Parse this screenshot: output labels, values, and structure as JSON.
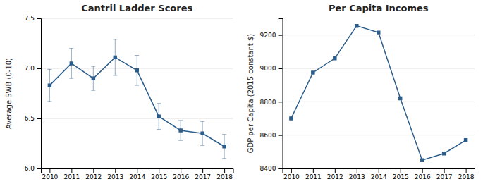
{
  "chart_data": [
    {
      "type": "line",
      "title": "Cantril Ladder Scores",
      "ylabel": "Average SWB (0-10)",
      "x": [
        2010,
        2011,
        2012,
        2013,
        2014,
        2015,
        2016,
        2017,
        2018
      ],
      "values": [
        6.83,
        7.05,
        6.9,
        7.11,
        6.98,
        6.52,
        6.38,
        6.35,
        6.22
      ],
      "error_low": [
        0.16,
        0.15,
        0.12,
        0.18,
        0.15,
        0.13,
        0.1,
        0.12,
        0.12
      ],
      "error_high": [
        0.16,
        0.15,
        0.12,
        0.18,
        0.15,
        0.13,
        0.1,
        0.12,
        0.12
      ],
      "color": "#2b5c8a",
      "marker": "square",
      "xlim": [
        2009.6,
        2018.4
      ],
      "xticks": [
        2010,
        2011,
        2012,
        2013,
        2014,
        2015,
        2016,
        2017,
        2018
      ],
      "ylim": [
        6.0,
        7.5
      ],
      "yticks": [
        {
          "value": 6.0,
          "label": "6.0"
        },
        6.5,
        {
          "value": 7.0,
          "label": "7.0"
        },
        7.5
      ],
      "grid": true
    },
    {
      "type": "line",
      "title": "Per Capita Incomes",
      "ylabel": "GDP per Capita (2015 constant $)",
      "x": [
        2010,
        2011,
        2012,
        2013,
        2014,
        2015,
        2016,
        2017,
        2018
      ],
      "values": [
        8700,
        8975,
        9060,
        9255,
        9215,
        8820,
        8450,
        8490,
        8570
      ],
      "color": "#2b5c8a",
      "marker": "square",
      "xlim": [
        2009.6,
        2018.4
      ],
      "xticks": [
        2010,
        2011,
        2012,
        2013,
        2014,
        2015,
        2016,
        2017,
        2018
      ],
      "ylim": [
        8400,
        9300
      ],
      "yticks": [
        8400,
        8600,
        8800,
        9000,
        9200
      ],
      "grid": true
    }
  ]
}
